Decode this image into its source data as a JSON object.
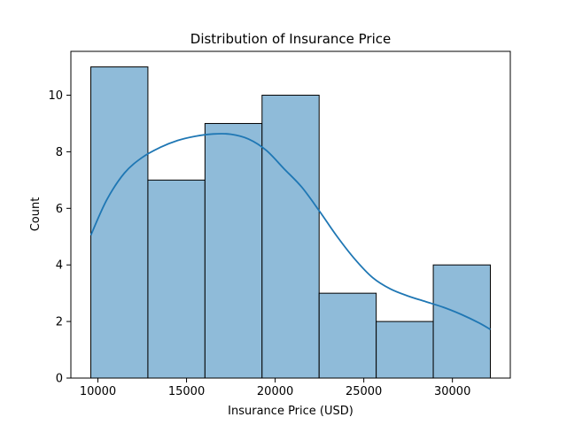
{
  "chart_data": {
    "type": "bar",
    "title": "Distribution of Insurance Price",
    "xlabel": "Insurance Price (USD)",
    "ylabel": "Count",
    "bins": [
      {
        "start": 9600,
        "end": 12820,
        "count": 11
      },
      {
        "start": 12820,
        "end": 16040,
        "count": 7
      },
      {
        "start": 16040,
        "end": 19260,
        "count": 9
      },
      {
        "start": 19260,
        "end": 22480,
        "count": 10
      },
      {
        "start": 22480,
        "end": 25700,
        "count": 3
      },
      {
        "start": 25700,
        "end": 28920,
        "count": 2
      },
      {
        "start": 28920,
        "end": 32140,
        "count": 4
      }
    ],
    "kde": {
      "x": [
        9600,
        10500,
        11500,
        12500,
        13500,
        14500,
        15500,
        16500,
        17500,
        18500,
        19500,
        20500,
        21500,
        22500,
        23500,
        24500,
        25500,
        26500,
        27500,
        28500,
        29500,
        30500,
        31500,
        32140
      ],
      "y": [
        5.05,
        6.3,
        7.25,
        7.8,
        8.15,
        8.4,
        8.55,
        8.63,
        8.62,
        8.45,
        8.05,
        7.4,
        6.75,
        5.9,
        5.0,
        4.2,
        3.55,
        3.15,
        2.9,
        2.7,
        2.5,
        2.25,
        1.95,
        1.72
      ]
    },
    "xlim": [
      8475,
      33265
    ],
    "ylim": [
      0,
      11.55
    ],
    "xticks": [
      10000,
      15000,
      20000,
      25000,
      30000
    ],
    "yticks": [
      0,
      2,
      4,
      6,
      8,
      10
    ],
    "bar_color": "#8fbbd9",
    "bar_edge_color": "#000000",
    "kde_color": "#1f77b4",
    "grid": false
  }
}
